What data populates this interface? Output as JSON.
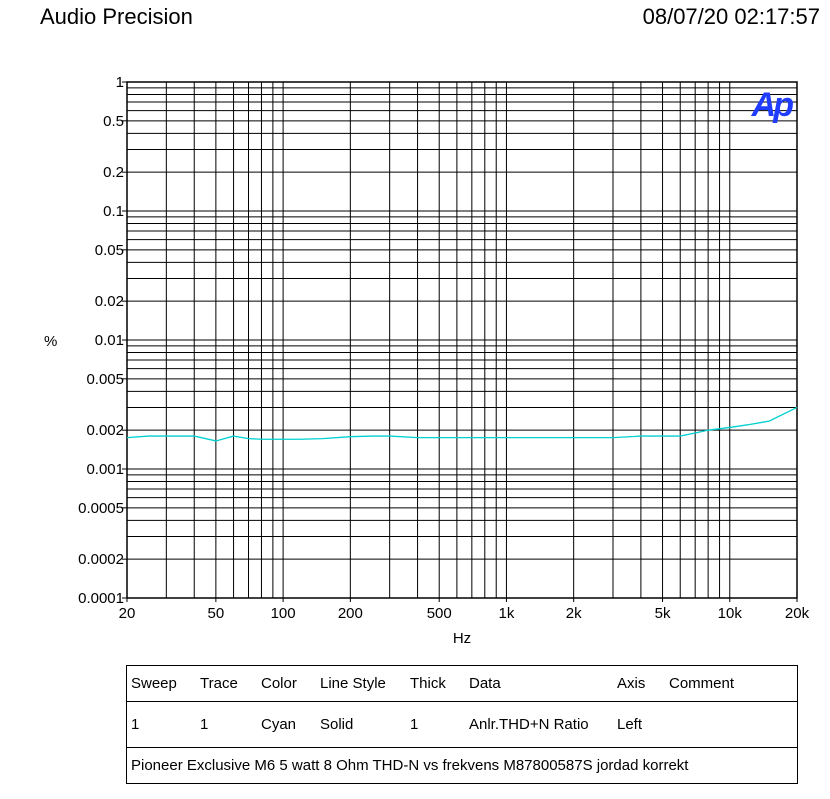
{
  "header": {
    "left": "Audio Precision",
    "right": "08/07/20 02:17:57"
  },
  "chart_data": {
    "type": "line",
    "xlabel": "Hz",
    "ylabel": "%",
    "xscale": "log",
    "yscale": "log",
    "xlim": [
      20,
      20000
    ],
    "ylim": [
      0.0001,
      1
    ],
    "grid": true,
    "logo": "Ap",
    "x_ticks": [
      "20",
      "50",
      "100",
      "200",
      "500",
      "1k",
      "2k",
      "5k",
      "10k",
      "20k"
    ],
    "x_tick_values": [
      20,
      50,
      100,
      200,
      500,
      1000,
      2000,
      5000,
      10000,
      20000
    ],
    "y_ticks": [
      "1",
      "0.5",
      "0.2",
      "0.1",
      "0.05",
      "0.02",
      "0.01",
      "0.005",
      "0.002",
      "0.001",
      "0.0005",
      "0.0002",
      "0.0001"
    ],
    "y_tick_values": [
      1,
      0.5,
      0.2,
      0.1,
      0.05,
      0.02,
      0.01,
      0.005,
      0.002,
      0.001,
      0.0005,
      0.0002,
      0.0001
    ],
    "series": [
      {
        "color": "#00d0d0",
        "x": [
          20,
          25,
          30,
          40,
          50,
          60,
          70,
          80,
          100,
          120,
          150,
          200,
          250,
          300,
          400,
          500,
          700,
          1000,
          1500,
          2000,
          3000,
          4000,
          5000,
          6000,
          7000,
          8000,
          10000,
          12000,
          15000,
          20000
        ],
        "y": [
          0.00175,
          0.0018,
          0.0018,
          0.0018,
          0.00165,
          0.0018,
          0.00172,
          0.0017,
          0.0017,
          0.0017,
          0.00172,
          0.00178,
          0.0018,
          0.0018,
          0.00175,
          0.00175,
          0.00175,
          0.00175,
          0.00175,
          0.00175,
          0.00175,
          0.0018,
          0.0018,
          0.0018,
          0.0019,
          0.002,
          0.0021,
          0.0022,
          0.00235,
          0.003
        ]
      }
    ]
  },
  "table": {
    "headers": {
      "sweep": "Sweep",
      "trace": "Trace",
      "color": "Color",
      "line_style": "Line Style",
      "thick": "Thick",
      "data": "Data",
      "axis": "Axis",
      "comment": "Comment"
    },
    "row": {
      "sweep": "1",
      "trace": "1",
      "color": "Cyan",
      "line_style": "Solid",
      "thick": "1",
      "data": "Anlr.THD+N Ratio",
      "axis": "Left",
      "comment": ""
    },
    "comment_line": "Pioneer Exclusive M6 5 watt 8 Ohm THD-N vs frekvens M87800587S jordad korrekt"
  }
}
